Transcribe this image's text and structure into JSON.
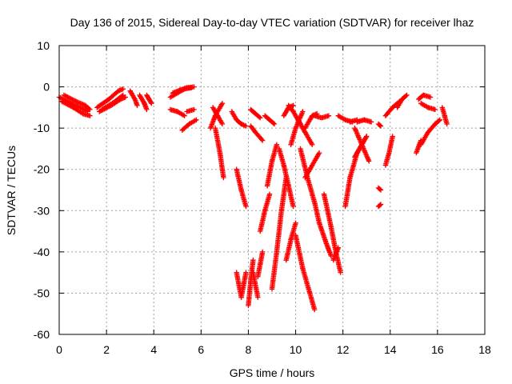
{
  "chart_data": {
    "type": "scatter",
    "title": "Day 136 of 2015, Sidereal Day-to-day VTEC variation (SDTVAR) for receiver lhaz",
    "xlabel": "GPS time / hours",
    "ylabel": "SDTVAR / TECUs",
    "xlim": [
      0,
      18
    ],
    "ylim": [
      -60,
      10
    ],
    "xticks": [
      0,
      2,
      4,
      6,
      8,
      10,
      12,
      14,
      16,
      18
    ],
    "yticks": [
      10,
      0,
      -10,
      -20,
      -30,
      -40,
      -50,
      -60
    ],
    "xtick_labels": [
      "0",
      "2",
      "4",
      "6",
      "8",
      "10",
      "12",
      "14",
      "16",
      "18"
    ],
    "ytick_labels": [
      "10",
      "0",
      "-10",
      "-20",
      "-30",
      "-40",
      "-50",
      "-60"
    ],
    "grid": true,
    "marker": "+",
    "color": "#ff0000",
    "tracks": [
      [
        [
          0.0,
          -2.5
        ],
        [
          0.5,
          -4.0
        ],
        [
          0.9,
          -5.0
        ],
        [
          1.2,
          -6.0
        ]
      ],
      [
        [
          0.1,
          -3.5
        ],
        [
          0.6,
          -5.0
        ],
        [
          1.0,
          -6.5
        ],
        [
          1.3,
          -7.0
        ]
      ],
      [
        [
          0.2,
          -2.0
        ],
        [
          0.7,
          -3.5
        ],
        [
          1.1,
          -4.5
        ],
        [
          1.3,
          -5.5
        ]
      ],
      [
        [
          1.6,
          -5.0
        ],
        [
          2.1,
          -3.0
        ],
        [
          2.5,
          -1.0
        ],
        [
          2.7,
          -0.5
        ]
      ],
      [
        [
          1.7,
          -6.0
        ],
        [
          2.2,
          -4.5
        ],
        [
          2.6,
          -3.0
        ],
        [
          2.8,
          -2.5
        ]
      ],
      [
        [
          1.8,
          -5.5
        ],
        [
          2.3,
          -3.8
        ],
        [
          2.7,
          -2.0
        ]
      ],
      [
        [
          3.0,
          -1.0
        ],
        [
          3.2,
          -3.0
        ],
        [
          3.3,
          -4.5
        ]
      ],
      [
        [
          3.4,
          -2.0
        ],
        [
          3.6,
          -4.0
        ],
        [
          3.7,
          -5.5
        ]
      ],
      [
        [
          3.7,
          -2.0
        ],
        [
          3.8,
          -3.0
        ],
        [
          3.9,
          -4.0
        ]
      ],
      [
        [
          4.7,
          -2.5
        ],
        [
          5.0,
          -1.5
        ],
        [
          5.3,
          -0.5
        ],
        [
          5.6,
          -0.2
        ]
      ],
      [
        [
          4.8,
          -1.5
        ],
        [
          5.1,
          -0.8
        ],
        [
          5.4,
          -0.2
        ],
        [
          5.7,
          0.0
        ]
      ],
      [
        [
          4.7,
          -5.5
        ],
        [
          5.0,
          -6.0
        ],
        [
          5.3,
          -7.0
        ]
      ],
      [
        [
          5.2,
          -10.5
        ],
        [
          5.5,
          -9.0
        ],
        [
          5.8,
          -8.0
        ]
      ],
      [
        [
          5.4,
          -6.0
        ],
        [
          5.7,
          -5.5
        ]
      ],
      [
        [
          6.4,
          -10.0
        ],
        [
          6.6,
          -7.0
        ],
        [
          6.9,
          -4.0
        ]
      ],
      [
        [
          6.5,
          -5.0
        ],
        [
          6.7,
          -7.0
        ],
        [
          6.9,
          -9.0
        ]
      ],
      [
        [
          6.6,
          -10.0
        ],
        [
          6.8,
          -16.0
        ],
        [
          6.95,
          -22.0
        ]
      ],
      [
        [
          7.5,
          -20.0
        ],
        [
          7.7,
          -25.0
        ],
        [
          7.9,
          -29.0
        ]
      ],
      [
        [
          7.3,
          -6.0
        ],
        [
          7.5,
          -8.0
        ],
        [
          7.7,
          -9.0
        ]
      ],
      [
        [
          7.7,
          -9.0
        ],
        [
          7.9,
          -9.5
        ]
      ],
      [
        [
          8.1,
          -5.5
        ],
        [
          8.3,
          -6.5
        ],
        [
          8.5,
          -7.5
        ]
      ],
      [
        [
          8.1,
          -9.5
        ],
        [
          8.3,
          -11.0
        ],
        [
          8.6,
          -13.0
        ]
      ],
      [
        [
          7.5,
          -45.0
        ],
        [
          7.6,
          -48.0
        ],
        [
          7.7,
          -51.0
        ],
        [
          7.8,
          -48.0
        ],
        [
          7.9,
          -45.0
        ]
      ],
      [
        [
          8.0,
          -53.0
        ],
        [
          8.1,
          -47.0
        ],
        [
          8.2,
          -42.0
        ]
      ],
      [
        [
          8.2,
          -45.0
        ],
        [
          8.3,
          -48.0
        ],
        [
          8.4,
          -51.0
        ]
      ],
      [
        [
          8.4,
          -46.0
        ],
        [
          8.5,
          -43.0
        ],
        [
          8.6,
          -40.0
        ]
      ],
      [
        [
          8.5,
          -35.0
        ],
        [
          8.7,
          -30.0
        ],
        [
          8.9,
          -26.0
        ]
      ],
      [
        [
          8.7,
          -7.0
        ],
        [
          8.9,
          -8.0
        ],
        [
          9.1,
          -9.0
        ]
      ],
      [
        [
          8.8,
          -24.0
        ],
        [
          9.0,
          -18.0
        ],
        [
          9.2,
          -14.0
        ]
      ],
      [
        [
          9.0,
          -49.0
        ],
        [
          9.2,
          -40.0
        ],
        [
          9.4,
          -30.0
        ],
        [
          9.6,
          -22.0
        ]
      ],
      [
        [
          9.3,
          -15.0
        ],
        [
          9.5,
          -19.0
        ],
        [
          9.7,
          -24.0
        ],
        [
          9.9,
          -29.0
        ]
      ],
      [
        [
          9.5,
          -7.0
        ],
        [
          9.7,
          -5.0
        ],
        [
          9.9,
          -4.5
        ]
      ],
      [
        [
          9.7,
          -4.5
        ],
        [
          9.9,
          -6.0
        ],
        [
          10.2,
          -9.0
        ]
      ],
      [
        [
          9.6,
          -42.0
        ],
        [
          9.8,
          -37.0
        ],
        [
          10.0,
          -33.0
        ]
      ],
      [
        [
          9.8,
          -14.0
        ],
        [
          10.0,
          -10.0
        ],
        [
          10.3,
          -6.0
        ]
      ],
      [
        [
          10.0,
          -36.0
        ],
        [
          10.3,
          -44.0
        ],
        [
          10.6,
          -50.0
        ],
        [
          10.8,
          -54.0
        ]
      ],
      [
        [
          10.1,
          -8.0
        ],
        [
          10.4,
          -11.0
        ],
        [
          10.7,
          -14.0
        ]
      ],
      [
        [
          10.2,
          -15.0
        ],
        [
          10.5,
          -22.0
        ],
        [
          10.8,
          -28.0
        ],
        [
          11.0,
          -33.0
        ],
        [
          11.3,
          -38.0
        ],
        [
          11.5,
          -41.0
        ]
      ],
      [
        [
          10.4,
          -22.0
        ],
        [
          10.7,
          -19.0
        ],
        [
          11.0,
          -16.0
        ]
      ],
      [
        [
          10.4,
          -10.0
        ],
        [
          10.7,
          -7.0
        ],
        [
          10.9,
          -6.5
        ]
      ],
      [
        [
          10.8,
          -7.0
        ],
        [
          11.1,
          -7.5
        ],
        [
          11.4,
          -7.0
        ]
      ],
      [
        [
          11.2,
          -26.0
        ],
        [
          11.5,
          -34.0
        ],
        [
          11.7,
          -40.0
        ],
        [
          11.9,
          -45.0
        ]
      ],
      [
        [
          11.6,
          -42.0
        ],
        [
          11.8,
          -39.0
        ]
      ],
      [
        [
          11.8,
          -7.0
        ],
        [
          12.1,
          -8.0
        ],
        [
          12.4,
          -8.5
        ]
      ],
      [
        [
          12.1,
          -29.0
        ],
        [
          12.3,
          -22.0
        ],
        [
          12.6,
          -16.0
        ],
        [
          13.0,
          -12.0
        ]
      ],
      [
        [
          12.3,
          -8.5
        ],
        [
          12.6,
          -8.0
        ]
      ],
      [
        [
          12.6,
          -8.5
        ],
        [
          12.9,
          -8.0
        ],
        [
          13.2,
          -8.5
        ]
      ],
      [
        [
          12.5,
          -10.0
        ],
        [
          12.8,
          -14.0
        ],
        [
          13.1,
          -18.0
        ]
      ],
      [
        [
          12.5,
          -17.0
        ],
        [
          12.8,
          -14.0
        ],
        [
          13.0,
          -12.0
        ]
      ],
      [
        [
          13.5,
          -9.0
        ],
        [
          13.6,
          -9.5
        ]
      ],
      [
        [
          13.5,
          -24.5
        ],
        [
          13.6,
          -25.0
        ]
      ],
      [
        [
          13.5,
          -29.0
        ],
        [
          13.6,
          -28.5
        ]
      ],
      [
        [
          13.8,
          -19.0
        ],
        [
          13.95,
          -16.0
        ],
        [
          14.1,
          -12.0
        ]
      ],
      [
        [
          13.8,
          -7.0
        ],
        [
          14.1,
          -5.0
        ],
        [
          14.4,
          -3.5
        ]
      ],
      [
        [
          14.3,
          -5.0
        ],
        [
          14.5,
          -3.0
        ],
        [
          14.7,
          -2.0
        ]
      ],
      [
        [
          15.2,
          -3.0
        ],
        [
          15.4,
          -2.0
        ],
        [
          15.7,
          -2.5
        ]
      ],
      [
        [
          15.3,
          -4.0
        ],
        [
          15.6,
          -5.0
        ],
        [
          15.9,
          -5.5
        ]
      ],
      [
        [
          15.3,
          -14.0
        ],
        [
          15.6,
          -11.0
        ],
        [
          15.9,
          -9.0
        ],
        [
          16.1,
          -8.0
        ]
      ],
      [
        [
          15.1,
          -16.0
        ],
        [
          15.3,
          -13.0
        ]
      ],
      [
        [
          16.2,
          -5.0
        ],
        [
          16.3,
          -7.0
        ],
        [
          16.4,
          -9.0
        ]
      ]
    ]
  }
}
